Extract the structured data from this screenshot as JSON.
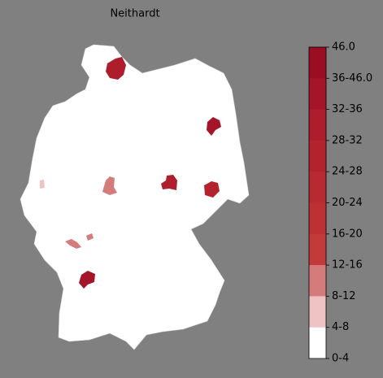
{
  "title": "Neithardt",
  "colorbar": {
    "labels": [
      "46.0",
      "36-46.0",
      "32-36",
      "28-32",
      "24-28",
      "20-24",
      "16-20",
      "12-16",
      "8-12",
      "4-8",
      "0-4"
    ],
    "colors": [
      "#9b0d22",
      "#a5152a",
      "#ad1d2c",
      "#b3232e",
      "#b82a31",
      "#bd3034",
      "#c33a3a",
      "#d47c7c",
      "#efc3c3",
      "#ffffff"
    ]
  }
}
